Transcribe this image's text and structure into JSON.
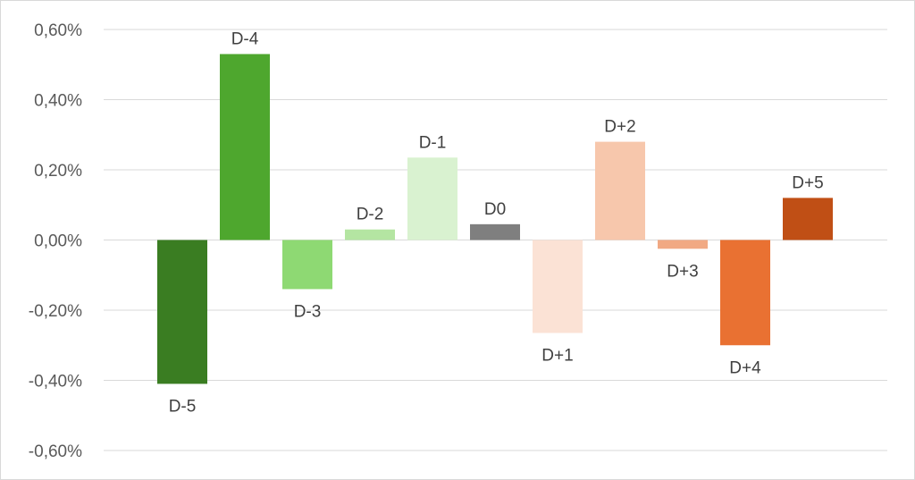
{
  "chart_data": {
    "type": "bar",
    "title": "",
    "xlabel": "",
    "ylabel": "",
    "categories": [
      "D-5",
      "D-4",
      "D-3",
      "D-2",
      "D-1",
      "D0",
      "D+1",
      "D+2",
      "D+3",
      "D+4",
      "D+5"
    ],
    "values": [
      -0.41,
      0.53,
      -0.14,
      0.03,
      0.235,
      0.045,
      -0.265,
      0.28,
      -0.025,
      -0.3,
      0.12
    ],
    "value_unit": "%",
    "ylim": [
      -0.6,
      0.6
    ],
    "yticks": [
      0.6,
      0.4,
      0.2,
      0.0,
      -0.2,
      -0.4,
      -0.6
    ],
    "ytick_labels": [
      "0,60%",
      "0,40%",
      "0,20%",
      "0,00%",
      "-0,20%",
      "-0,40%",
      "-0,60%"
    ],
    "grid": true,
    "legend": "none",
    "bar_colors": [
      "#3a7d22",
      "#4ea72e",
      "#8ed973",
      "#b4e5a2",
      "#d9f2d0",
      "#7f7f7f",
      "#fbe2d5",
      "#f7c7ac",
      "#f1a983",
      "#e97132",
      "#c04f15"
    ]
  }
}
